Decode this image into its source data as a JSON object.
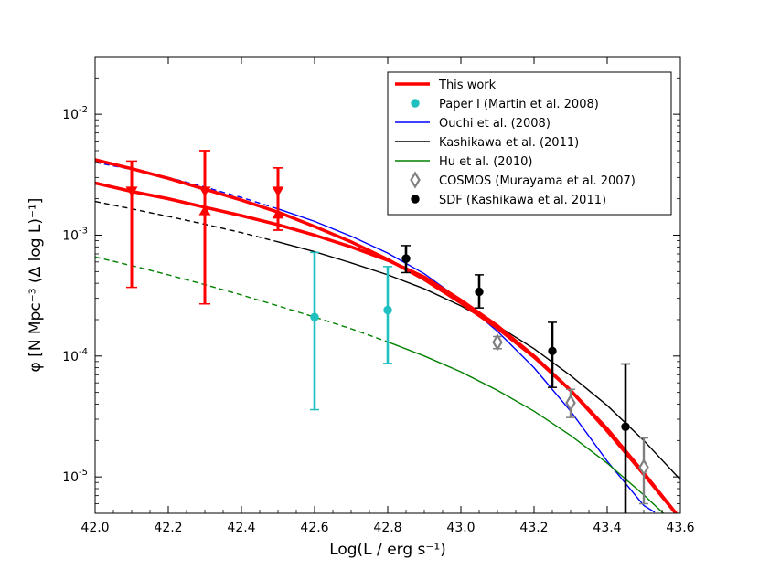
{
  "chart_data": {
    "type": "scatter",
    "title": "",
    "xlabel": "Log(L / erg s⁻¹)",
    "ylabel": "φ [N Mpc⁻³ (Δ log L)⁻¹]",
    "xlim": [
      42.0,
      43.6
    ],
    "ylim": [
      5e-06,
      0.03
    ],
    "yscale": "log",
    "grid": false,
    "legend_position": "top-right",
    "xticks": [
      42.0,
      42.2,
      42.4,
      42.6,
      42.8,
      43.0,
      43.2,
      43.4,
      43.6
    ],
    "xtick_labels": [
      "42.0",
      "42.2",
      "42.4",
      "42.6",
      "42.8",
      "43.0",
      "43.2",
      "43.4",
      "43.6"
    ],
    "yticks": [
      {
        "value": 1e-05,
        "base": "10",
        "exp": "-5"
      },
      {
        "value": 0.0001,
        "base": "10",
        "exp": "-4"
      },
      {
        "value": 0.001,
        "base": "10",
        "exp": "-3"
      },
      {
        "value": 0.01,
        "base": "10",
        "exp": "-2"
      }
    ],
    "series": [
      {
        "name": "This work",
        "kind": "line",
        "color": "#ff0000",
        "curves": [
          {
            "x": [
              42.0,
              42.1,
              42.2,
              42.3,
              42.4,
              42.5,
              42.6,
              42.7,
              42.8,
              42.9,
              43.0,
              43.1,
              43.2,
              43.3,
              43.4,
              43.5,
              43.6
            ],
            "y": [
              0.0042,
              0.00355,
              0.00295,
              0.0024,
              0.00195,
              0.00155,
              0.00118,
              0.00088,
              0.00063,
              0.00043,
              0.000275,
              0.00017,
              9.8e-05,
              5.2e-05,
              2.5e-05,
              1.08e-05,
              4.5e-06
            ]
          },
          {
            "x": [
              42.0,
              42.1,
              42.2,
              42.3,
              42.4,
              42.5,
              42.6,
              42.7,
              42.8,
              42.9,
              43.0,
              43.1,
              43.2,
              43.3,
              43.4,
              43.5,
              43.6
            ],
            "y": [
              0.0027,
              0.0023,
              0.002,
              0.0017,
              0.00145,
              0.00122,
              0.001,
              0.0008,
              0.00062,
              0.00045,
              0.00029,
              0.000178,
              0.0001,
              5.2e-05,
              2.4e-05,
              1.05e-05,
              4.5e-06
            ]
          }
        ]
      },
      {
        "name": "This work",
        "kind": "points",
        "marker": "triangle-down",
        "color": "#ff0000",
        "points": [
          {
            "x": 42.1,
            "y": 0.0023,
            "ylo": 0.00037,
            "yhi": 0.0041
          },
          {
            "x": 42.3,
            "y": 0.0023,
            "ylo": 0.00027,
            "yhi": 0.005
          },
          {
            "x": 42.5,
            "y": 0.0023,
            "ylo": 0.0011,
            "yhi": 0.0036
          }
        ]
      },
      {
        "name": "This work",
        "kind": "points",
        "marker": "triangle-up",
        "color": "#ff0000",
        "points": [
          {
            "x": 42.3,
            "y": 0.0016,
            "ylo": 0.00027,
            "yhi": 0.005
          },
          {
            "x": 42.5,
            "y": 0.0015,
            "ylo": 0.0011,
            "yhi": 0.0036
          }
        ]
      },
      {
        "name": "Paper I (Martin et al. 2008)",
        "kind": "points",
        "marker": "circle",
        "color": "#20c0c0",
        "points": [
          {
            "x": 42.6,
            "y": 0.00021,
            "ylo": 3.6e-05,
            "yhi": 0.00072
          },
          {
            "x": 42.8,
            "y": 0.00024,
            "ylo": 8.7e-05,
            "yhi": 0.00055
          }
        ]
      },
      {
        "name": "Ouchi et al. (2008)",
        "kind": "line",
        "color": "#0000ff",
        "dashed_until": 42.5,
        "x": [
          42.0,
          42.1,
          42.2,
          42.3,
          42.4,
          42.5,
          42.6,
          42.7,
          42.8,
          42.9,
          43.0,
          43.1,
          43.2,
          43.3,
          43.4,
          43.5,
          43.53
        ],
        "y": [
          0.004,
          0.0035,
          0.003,
          0.0025,
          0.00205,
          0.00165,
          0.0013,
          0.00098,
          0.00071,
          0.00048,
          0.00029,
          0.00016,
          8e-05,
          3.5e-05,
          1.35e-05,
          5.8e-06,
          5.1e-06
        ]
      },
      {
        "name": "Kashikawa et al. (2011)",
        "kind": "line",
        "color": "#000000",
        "dashed_until": 42.5,
        "x": [
          42.0,
          42.1,
          42.2,
          42.3,
          42.4,
          42.5,
          42.6,
          42.7,
          42.8,
          42.9,
          43.0,
          43.1,
          43.2,
          43.3,
          43.4,
          43.5,
          43.6
        ],
        "y": [
          0.0019,
          0.00165,
          0.00143,
          0.00123,
          0.00105,
          0.00088,
          0.00073,
          0.00059,
          0.00047,
          0.00036,
          0.00026,
          0.000178,
          0.000115,
          6.9e-05,
          3.9e-05,
          2e-05,
          9.5e-06
        ]
      },
      {
        "name": "Hu et al. (2010)",
        "kind": "line",
        "color": "#008000",
        "dashed_until": 42.8,
        "x": [
          42.0,
          42.1,
          42.2,
          42.3,
          42.4,
          42.5,
          42.6,
          42.7,
          42.8,
          42.9,
          43.0,
          43.1,
          43.2,
          43.3,
          43.4,
          43.5,
          43.56
        ],
        "y": [
          0.00066,
          0.00056,
          0.00047,
          0.00039,
          0.00032,
          0.00026,
          0.00021,
          0.000168,
          0.000131,
          0.0001,
          7.4e-05,
          5.2e-05,
          3.5e-05,
          2.2e-05,
          1.3e-05,
          7.1e-06,
          4.8e-06
        ]
      },
      {
        "name": "COSMOS (Murayama et al. 2007)",
        "kind": "points",
        "marker": "diamond-open",
        "color": "#808080",
        "points": [
          {
            "x": 43.1,
            "y": 0.00013,
            "ylo": 0.000115,
            "yhi": 0.000145
          },
          {
            "x": 43.3,
            "y": 4.1e-05,
            "ylo": 3.1e-05,
            "yhi": 5.3e-05
          },
          {
            "x": 43.5,
            "y": 1.2e-05,
            "ylo": 6e-06,
            "yhi": 2.1e-05
          }
        ]
      },
      {
        "name": "SDF (Kashikawa et al. 2011)",
        "kind": "points",
        "marker": "circle",
        "color": "#000000",
        "points": [
          {
            "x": 42.85,
            "y": 0.00064,
            "ylo": 0.00049,
            "yhi": 0.00082
          },
          {
            "x": 43.05,
            "y": 0.00034,
            "ylo": 0.00025,
            "yhi": 0.00047
          },
          {
            "x": 43.25,
            "y": 0.00011,
            "ylo": 5.5e-05,
            "yhi": 0.00019
          },
          {
            "x": 43.45,
            "y": 2.6e-05,
            "ylo": 4e-06,
            "yhi": 8.6e-05
          }
        ]
      }
    ],
    "legend": [
      {
        "label": "This work",
        "symbol": "line",
        "color": "#ff0000"
      },
      {
        "label": "Paper I (Martin et al. 2008)",
        "symbol": "circle",
        "color": "#20c0c0"
      },
      {
        "label": "Ouchi et al. (2008)",
        "symbol": "line",
        "color": "#0000ff"
      },
      {
        "label": "Kashikawa et al. (2011)",
        "symbol": "line",
        "color": "#000000"
      },
      {
        "label": "Hu et al. (2010)",
        "symbol": "line",
        "color": "#008000"
      },
      {
        "label": "COSMOS (Murayama et al. 2007)",
        "symbol": "diamond-open",
        "color": "#808080"
      },
      {
        "label": "SDF (Kashikawa et al. 2011)",
        "symbol": "circle",
        "color": "#000000"
      }
    ]
  }
}
